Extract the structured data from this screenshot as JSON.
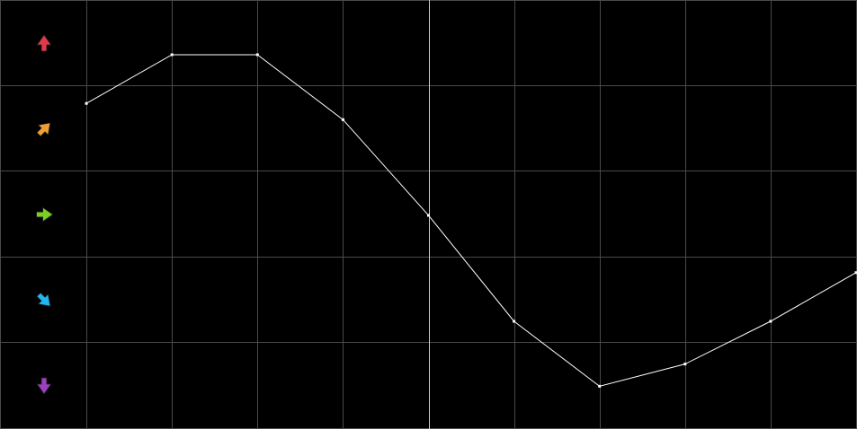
{
  "editor": {
    "background": "#000000",
    "grid_color": "#4a4a4a",
    "curve_color": "#ffffff",
    "cursor_color": "#d8d86a",
    "row_icons": [
      {
        "name": "arrow-up-icon",
        "color": "#e03a4a",
        "angle": 0
      },
      {
        "name": "arrow-up-right-icon",
        "color": "#f0a030",
        "angle": 45
      },
      {
        "name": "arrow-right-icon",
        "color": "#7ad020",
        "angle": 90
      },
      {
        "name": "arrow-down-right-icon",
        "color": "#20b8f0",
        "angle": 135
      },
      {
        "name": "arrow-down-icon",
        "color": "#9a40c0",
        "angle": 180
      }
    ]
  },
  "chart_data": {
    "type": "line",
    "x_range": [
      0,
      10
    ],
    "y_range": [
      0,
      5
    ],
    "grid": true,
    "x": [
      1,
      2,
      3,
      4,
      5,
      6,
      7,
      8,
      9,
      10
    ],
    "values": [
      3.8,
      4.37,
      4.37,
      3.61,
      2.49,
      1.25,
      0.49,
      0.75,
      1.25,
      1.82
    ],
    "cursor_x": 5
  }
}
